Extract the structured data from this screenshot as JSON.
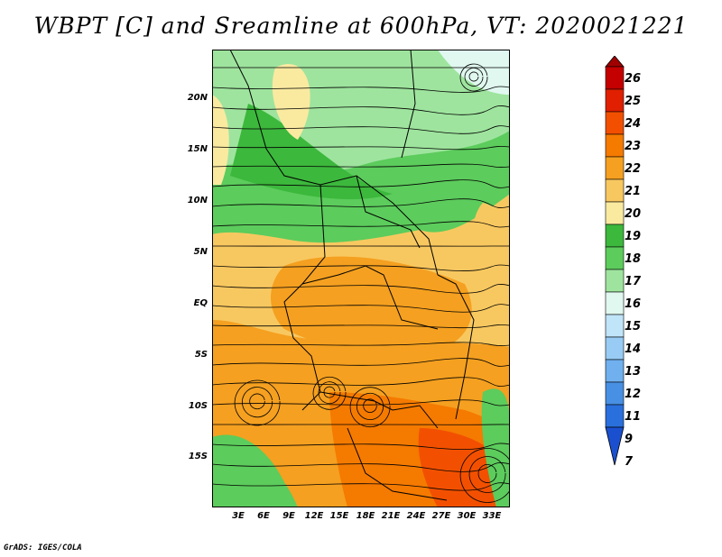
{
  "title": "WBPT [C] and Sreamline at 600hPa, VT: 2020021221",
  "y_axis_labels": [
    "20N",
    "15N",
    "10N",
    "5N",
    "EQ",
    "5S",
    "10S",
    "15S"
  ],
  "x_axis_labels": [
    "3E",
    "6E",
    "9E",
    "12E",
    "15E",
    "18E",
    "21E",
    "24E",
    "27E",
    "30E",
    "33E"
  ],
  "colorbar": {
    "labels": [
      "26",
      "25",
      "24",
      "23",
      "22",
      "21",
      "20",
      "19",
      "18",
      "17",
      "16",
      "15",
      "14",
      "13",
      "12",
      "11",
      "9",
      "7"
    ],
    "colors": [
      "#a10000",
      "#c40000",
      "#e02000",
      "#f25000",
      "#f57a00",
      "#f5a020",
      "#f8c860",
      "#faeaa0",
      "#3cb83c",
      "#5ccc5c",
      "#9ee49e",
      "#e0f8f0",
      "#c0e4f8",
      "#98ccf4",
      "#70b0ee",
      "#4890e4",
      "#2a70dc",
      "#1a50d0"
    ]
  },
  "footer": "GrADS: IGES/COLA"
}
